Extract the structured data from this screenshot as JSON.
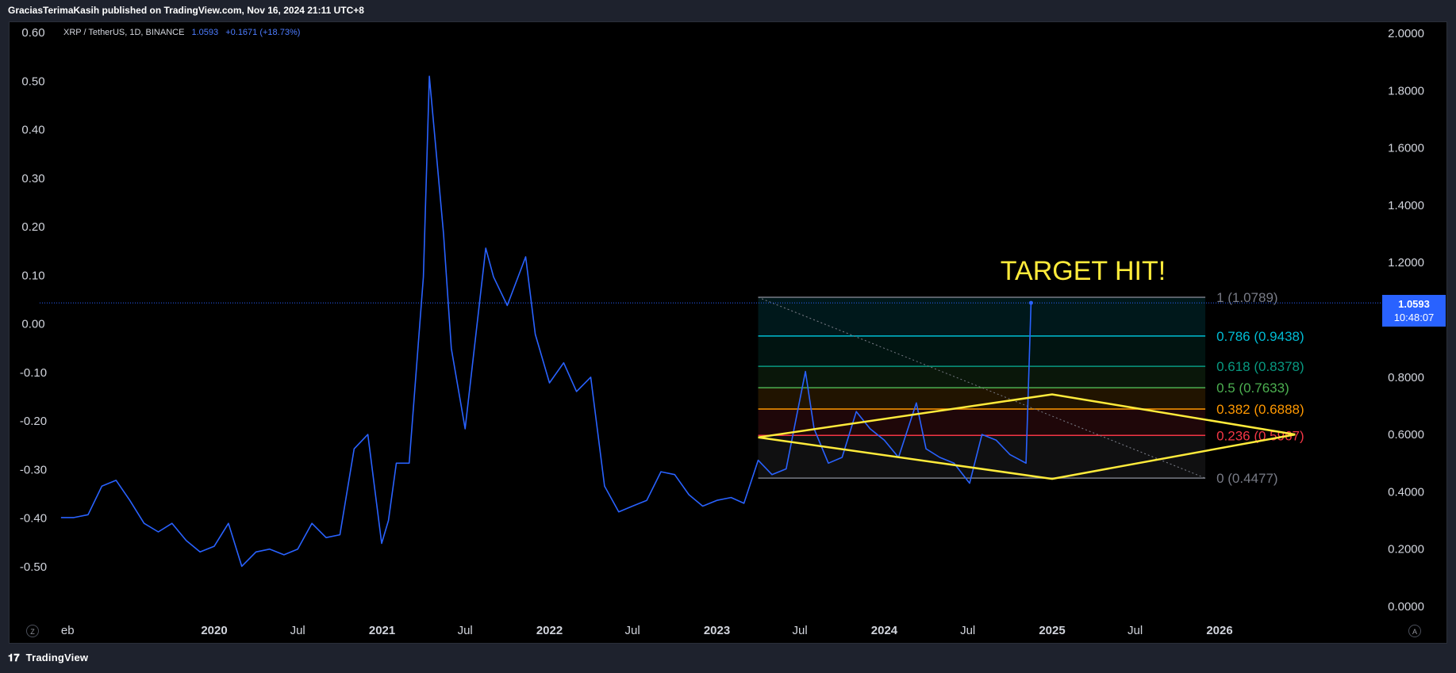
{
  "header": {
    "published_by": "GraciasTerimaKasih published on TradingView.com, Nov 16, 2024 21:11 UTC+8"
  },
  "legend": {
    "symbol": "XRP / TetherUS, 1D, BINANCE",
    "price": "1.0593",
    "change": "+0.1671 (+18.73%)"
  },
  "footer": {
    "brand": "TradingView"
  },
  "price_tag": {
    "price": "1.0593",
    "countdown": "10:48:07"
  },
  "annotation": {
    "text": "TARGET HIT!",
    "color": "#ffeb3b"
  },
  "buttons": {
    "z": "Z",
    "a": "A"
  },
  "colors": {
    "background": "#000000",
    "price_line": "#2962ff",
    "triangle": "#ffeb3b"
  },
  "chart_data": {
    "type": "line",
    "title": "XRP / TetherUS, 1D, BINANCE",
    "left_axis": {
      "ticks": [
        "0.60",
        "0.50",
        "0.40",
        "0.30",
        "0.20",
        "0.10",
        "0.00",
        "-0.10",
        "-0.20",
        "-0.30",
        "-0.40",
        "-0.50"
      ],
      "range": [
        -0.62,
        0.645
      ]
    },
    "right_axis": {
      "ticks": [
        "2.0000",
        "1.8000",
        "1.6000",
        "1.4000",
        "1.2000",
        "0.8000",
        "0.6000",
        "0.4000",
        "0.2000",
        "0.0000"
      ],
      "range": [
        -0.1,
        2.05
      ]
    },
    "x_axis": {
      "ticks": [
        "eb",
        "2020",
        "Jul",
        "2021",
        "Jul",
        "2022",
        "Jul",
        "2023",
        "Jul",
        "2024",
        "Jul",
        "2025",
        "Jul",
        "2026"
      ]
    },
    "series": [
      {
        "values": [
          [
            "2019-02-01",
            0.31
          ],
          [
            "2019-03-01",
            0.31
          ],
          [
            "2019-04-01",
            0.32
          ],
          [
            "2019-05-01",
            0.42
          ],
          [
            "2019-06-01",
            0.44
          ],
          [
            "2019-07-01",
            0.37
          ],
          [
            "2019-08-01",
            0.29
          ],
          [
            "2019-09-01",
            0.26
          ],
          [
            "2019-10-01",
            0.29
          ],
          [
            "2019-11-01",
            0.23
          ],
          [
            "2019-12-01",
            0.19
          ],
          [
            "2020-01-01",
            0.21
          ],
          [
            "2020-02-01",
            0.29
          ],
          [
            "2020-03-01",
            0.14
          ],
          [
            "2020-04-01",
            0.19
          ],
          [
            "2020-05-01",
            0.2
          ],
          [
            "2020-06-01",
            0.18
          ],
          [
            "2020-07-01",
            0.2
          ],
          [
            "2020-08-01",
            0.29
          ],
          [
            "2020-09-01",
            0.24
          ],
          [
            "2020-10-01",
            0.25
          ],
          [
            "2020-11-01",
            0.55
          ],
          [
            "2020-12-01",
            0.6
          ],
          [
            "2020-12-31",
            0.22
          ],
          [
            "2021-01-15",
            0.3
          ],
          [
            "2021-02-01",
            0.5
          ],
          [
            "2021-03-01",
            0.5
          ],
          [
            "2021-04-01",
            1.15
          ],
          [
            "2021-04-14",
            1.85
          ],
          [
            "2021-05-01",
            1.55
          ],
          [
            "2021-05-15",
            1.3
          ],
          [
            "2021-06-01",
            0.9
          ],
          [
            "2021-07-01",
            0.62
          ],
          [
            "2021-08-15",
            1.25
          ],
          [
            "2021-09-01",
            1.15
          ],
          [
            "2021-10-01",
            1.05
          ],
          [
            "2021-11-10",
            1.22
          ],
          [
            "2021-12-01",
            0.95
          ],
          [
            "2022-01-01",
            0.78
          ],
          [
            "2022-02-01",
            0.85
          ],
          [
            "2022-03-01",
            0.75
          ],
          [
            "2022-04-01",
            0.8
          ],
          [
            "2022-05-01",
            0.42
          ],
          [
            "2022-06-01",
            0.33
          ],
          [
            "2022-07-01",
            0.35
          ],
          [
            "2022-08-01",
            0.37
          ],
          [
            "2022-09-01",
            0.47
          ],
          [
            "2022-10-01",
            0.46
          ],
          [
            "2022-11-01",
            0.39
          ],
          [
            "2022-12-01",
            0.35
          ],
          [
            "2023-01-01",
            0.37
          ],
          [
            "2023-02-01",
            0.38
          ],
          [
            "2023-03-01",
            0.36
          ],
          [
            "2023-04-01",
            0.51
          ],
          [
            "2023-05-01",
            0.46
          ],
          [
            "2023-06-01",
            0.48
          ],
          [
            "2023-07-13",
            0.82
          ],
          [
            "2023-08-01",
            0.62
          ],
          [
            "2023-09-01",
            0.5
          ],
          [
            "2023-10-01",
            0.52
          ],
          [
            "2023-11-01",
            0.68
          ],
          [
            "2023-12-01",
            0.62
          ],
          [
            "2024-01-01",
            0.58
          ],
          [
            "2024-02-01",
            0.52
          ],
          [
            "2024-03-11",
            0.71
          ],
          [
            "2024-04-01",
            0.55
          ],
          [
            "2024-05-01",
            0.52
          ],
          [
            "2024-06-01",
            0.5
          ],
          [
            "2024-07-05",
            0.43
          ],
          [
            "2024-08-01",
            0.6
          ],
          [
            "2024-09-01",
            0.58
          ],
          [
            "2024-10-01",
            0.53
          ],
          [
            "2024-11-05",
            0.5
          ],
          [
            "2024-11-16",
            1.0593
          ]
        ]
      }
    ],
    "fibonacci": [
      {
        "label": "1 (1.0789)",
        "level": 1.0789,
        "color": "#787b86"
      },
      {
        "label": "0.786 (0.9438)",
        "level": 0.9438,
        "color": "#00bcd4"
      },
      {
        "label": "0.618 (0.8378)",
        "level": 0.8378,
        "color": "#089981"
      },
      {
        "label": "0.5 (0.7633)",
        "level": 0.7633,
        "color": "#4caf50"
      },
      {
        "label": "0.382 (0.6888)",
        "level": 0.6888,
        "color": "#ff9800"
      },
      {
        "label": "0.236 (0.5967)",
        "level": 0.5967,
        "color": "#f23645"
      },
      {
        "label": "0 (0.4477)",
        "level": 0.4477,
        "color": "#787b86"
      }
    ],
    "fib_range": {
      "start": "2023-04-01",
      "end": "2025-12-01"
    },
    "triangle": [
      [
        [
          "2023-04-01",
          0.59
        ],
        [
          "2025-01-01",
          0.74
        ],
        [
          "2026-06-15",
          0.6
        ]
      ],
      [
        [
          "2023-04-01",
          0.59
        ],
        [
          "2025-01-01",
          0.445
        ],
        [
          "2026-06-15",
          0.6
        ]
      ]
    ],
    "last_price": 1.0593
  }
}
